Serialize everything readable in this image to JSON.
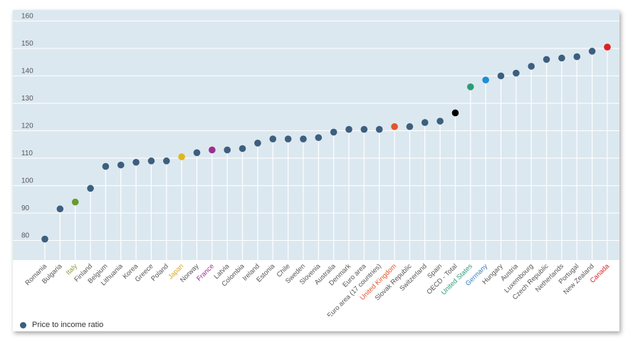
{
  "chart_data": {
    "type": "scatter",
    "ylim": [
      75,
      160
    ],
    "yticks": [
      80,
      90,
      100,
      110,
      120,
      130,
      140,
      150,
      160
    ],
    "grid": true,
    "legend": [
      {
        "label": "Price to income ratio",
        "color": "#3d5f7e"
      }
    ],
    "default_color": "#3d5f7e",
    "default_label_color": "#555555",
    "points": [
      {
        "label": "Romania",
        "value": 80.5
      },
      {
        "label": "Bulgaria",
        "value": 91.5
      },
      {
        "label": "Italy",
        "value": 94,
        "color": "#6a9a2c",
        "label_color": "#8a9a3a"
      },
      {
        "label": "Finland",
        "value": 99
      },
      {
        "label": "Belgium",
        "value": 107
      },
      {
        "label": "Lithuania",
        "value": 107.5
      },
      {
        "label": "Korea",
        "value": 108.5
      },
      {
        "label": "Greece",
        "value": 109
      },
      {
        "label": "Poland",
        "value": 109
      },
      {
        "label": "Japan",
        "value": 110.5,
        "color": "#e2b61b",
        "label_color": "#d9a81a"
      },
      {
        "label": "Norway",
        "value": 112
      },
      {
        "label": "France",
        "value": 113,
        "color": "#9b2f8e",
        "label_color": "#9b2f8e"
      },
      {
        "label": "Latvia",
        "value": 113
      },
      {
        "label": "Colombia",
        "value": 113.5
      },
      {
        "label": "Ireland",
        "value": 115.5
      },
      {
        "label": "Estonia",
        "value": 117
      },
      {
        "label": "Chile",
        "value": 117
      },
      {
        "label": "Sweden",
        "value": 117
      },
      {
        "label": "Slovenia",
        "value": 117.5
      },
      {
        "label": "Australia",
        "value": 119.5
      },
      {
        "label": "Denmark",
        "value": 120.5
      },
      {
        "label": "Euro area",
        "value": 120.5
      },
      {
        "label": "Euro area (17 countries)",
        "value": 120.5
      },
      {
        "label": "United Kingdom",
        "value": 121.5,
        "color": "#e2542b",
        "label_color": "#e2542b"
      },
      {
        "label": "Slovak Republic",
        "value": 121.5
      },
      {
        "label": "Switzerland",
        "value": 123
      },
      {
        "label": "Spain",
        "value": 123.5
      },
      {
        "label": "OECD - Total",
        "value": 126.5,
        "color": "#000000"
      },
      {
        "label": "United States",
        "value": 136,
        "color": "#2e9a78",
        "label_color": "#2e9a78"
      },
      {
        "label": "Germany",
        "value": 138.5,
        "color": "#1e8ed6",
        "label_color": "#3a7fc0"
      },
      {
        "label": "Hungary",
        "value": 140
      },
      {
        "label": "Austria",
        "value": 141
      },
      {
        "label": "Luxembourg",
        "value": 143.5
      },
      {
        "label": "Czech Republic",
        "value": 146
      },
      {
        "label": "Netherlands",
        "value": 146.5
      },
      {
        "label": "Portugal",
        "value": 147
      },
      {
        "label": "New Zealand",
        "value": 149
      },
      {
        "label": "Canada",
        "value": 150.5,
        "color": "#e02020",
        "label_color": "#e02020"
      }
    ]
  }
}
